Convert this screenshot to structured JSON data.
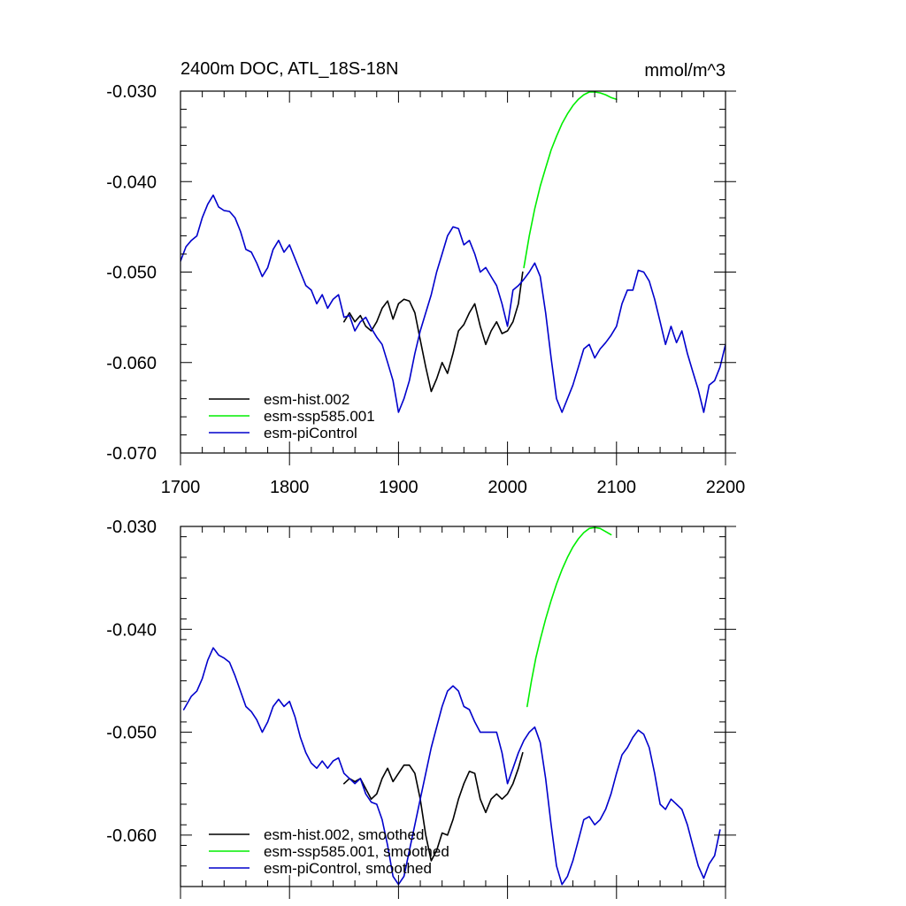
{
  "chart_data": [
    {
      "type": "line",
      "title": "2400m DOC, ATL_18S-18N",
      "units_label": "mmol/m^3",
      "xlim": [
        1700,
        2200
      ],
      "ylim": [
        -0.07,
        -0.03
      ],
      "xticks": [
        1700,
        1800,
        1900,
        2000,
        2100,
        2200
      ],
      "xtick_labels": [
        "1700",
        "1800",
        "1900",
        "2000",
        "2100",
        "2200"
      ],
      "yticks": [
        -0.07,
        -0.06,
        -0.05,
        -0.04,
        -0.03
      ],
      "ytick_labels": [
        "-0.070",
        "-0.060",
        "-0.050",
        "-0.040",
        "-0.030"
      ],
      "legend_position": "bottom-left",
      "series": [
        {
          "name": "esm-hist.002",
          "color": "#000000",
          "x": [
            1850,
            1855,
            1860,
            1865,
            1870,
            1875,
            1880,
            1885,
            1890,
            1895,
            1900,
            1905,
            1910,
            1915,
            1920,
            1925,
            1930,
            1935,
            1940,
            1945,
            1950,
            1955,
            1960,
            1965,
            1970,
            1975,
            1980,
            1985,
            1990,
            1995,
            2000,
            2005,
            2010,
            2014
          ],
          "y": [
            -0.0555,
            -0.0545,
            -0.0555,
            -0.0548,
            -0.056,
            -0.0565,
            -0.0555,
            -0.054,
            -0.0532,
            -0.0552,
            -0.0535,
            -0.053,
            -0.0532,
            -0.0545,
            -0.0575,
            -0.0605,
            -0.0632,
            -0.0618,
            -0.06,
            -0.0612,
            -0.059,
            -0.0565,
            -0.0558,
            -0.0545,
            -0.0535,
            -0.056,
            -0.058,
            -0.0565,
            -0.0555,
            -0.0568,
            -0.0565,
            -0.0555,
            -0.0535,
            -0.05
          ]
        },
        {
          "name": "esm-ssp585.001",
          "color": "#00ee00",
          "x": [
            2015,
            2020,
            2025,
            2030,
            2035,
            2040,
            2045,
            2050,
            2055,
            2060,
            2065,
            2070,
            2075,
            2080,
            2085,
            2090,
            2095,
            2100
          ],
          "y": [
            -0.0495,
            -0.046,
            -0.043,
            -0.0405,
            -0.0385,
            -0.0365,
            -0.035,
            -0.0336,
            -0.0325,
            -0.0316,
            -0.0309,
            -0.0304,
            -0.0301,
            -0.0301,
            -0.0302,
            -0.0304,
            -0.0307,
            -0.0309
          ]
        },
        {
          "name": "esm-piControl",
          "color": "#0000cc",
          "x": [
            1700,
            1705,
            1710,
            1715,
            1720,
            1725,
            1730,
            1735,
            1740,
            1745,
            1750,
            1755,
            1760,
            1765,
            1770,
            1775,
            1780,
            1785,
            1790,
            1795,
            1800,
            1805,
            1810,
            1815,
            1820,
            1825,
            1830,
            1835,
            1840,
            1845,
            1850,
            1855,
            1860,
            1865,
            1870,
            1875,
            1880,
            1885,
            1890,
            1895,
            1900,
            1905,
            1910,
            1915,
            1920,
            1925,
            1930,
            1935,
            1940,
            1945,
            1950,
            1955,
            1960,
            1965,
            1970,
            1975,
            1980,
            1985,
            1990,
            1995,
            2000,
            2005,
            2010,
            2015,
            2020,
            2025,
            2030,
            2035,
            2040,
            2045,
            2050,
            2055,
            2060,
            2065,
            2070,
            2075,
            2080,
            2085,
            2090,
            2095,
            2100,
            2105,
            2110,
            2115,
            2120,
            2125,
            2130,
            2135,
            2140,
            2145,
            2150,
            2155,
            2160,
            2165,
            2170,
            2175,
            2180,
            2185,
            2190,
            2195,
            2200
          ],
          "y": [
            -0.0488,
            -0.0472,
            -0.0465,
            -0.046,
            -0.044,
            -0.0425,
            -0.0415,
            -0.0428,
            -0.0432,
            -0.0433,
            -0.044,
            -0.0455,
            -0.0475,
            -0.0478,
            -0.049,
            -0.0505,
            -0.0495,
            -0.0475,
            -0.0465,
            -0.0478,
            -0.047,
            -0.0485,
            -0.05,
            -0.0515,
            -0.052,
            -0.0535,
            -0.0525,
            -0.054,
            -0.053,
            -0.0525,
            -0.055,
            -0.0548,
            -0.0565,
            -0.0555,
            -0.055,
            -0.0562,
            -0.0572,
            -0.058,
            -0.06,
            -0.062,
            -0.0655,
            -0.064,
            -0.062,
            -0.059,
            -0.0565,
            -0.0545,
            -0.0525,
            -0.05,
            -0.048,
            -0.046,
            -0.045,
            -0.0452,
            -0.047,
            -0.0465,
            -0.048,
            -0.05,
            -0.0495,
            -0.0505,
            -0.0515,
            -0.0535,
            -0.056,
            -0.052,
            -0.0515,
            -0.0508,
            -0.05,
            -0.049,
            -0.0505,
            -0.0545,
            -0.0595,
            -0.064,
            -0.0655,
            -0.064,
            -0.0625,
            -0.0605,
            -0.0585,
            -0.058,
            -0.0595,
            -0.0585,
            -0.0578,
            -0.057,
            -0.056,
            -0.0535,
            -0.052,
            -0.052,
            -0.0498,
            -0.05,
            -0.051,
            -0.053,
            -0.0555,
            -0.058,
            -0.056,
            -0.0578,
            -0.0565,
            -0.059,
            -0.061,
            -0.063,
            -0.0655,
            -0.0625,
            -0.062,
            -0.0605,
            -0.058
          ]
        }
      ]
    },
    {
      "type": "line",
      "title": "",
      "xlim": [
        1700,
        2200
      ],
      "ylim": [
        -0.065,
        -0.03
      ],
      "xticks": [
        1700,
        1800,
        1900,
        2000,
        2100,
        2200
      ],
      "xtick_labels": [],
      "yticks": [
        -0.06,
        -0.05,
        -0.04,
        -0.03
      ],
      "ytick_labels": [
        "-0.060",
        "-0.050",
        "-0.040",
        "-0.030"
      ],
      "legend_position": "bottom-left",
      "series": [
        {
          "name": "esm-hist.002, smoothed",
          "color": "#000000",
          "x": [
            1850,
            1855,
            1860,
            1865,
            1870,
            1875,
            1880,
            1885,
            1890,
            1895,
            1900,
            1905,
            1910,
            1915,
            1920,
            1925,
            1930,
            1935,
            1940,
            1945,
            1950,
            1955,
            1960,
            1965,
            1970,
            1975,
            1980,
            1985,
            1990,
            1995,
            2000,
            2005,
            2010,
            2014
          ],
          "y": [
            -0.055,
            -0.0545,
            -0.0548,
            -0.0545,
            -0.0555,
            -0.0565,
            -0.056,
            -0.0545,
            -0.0535,
            -0.0548,
            -0.054,
            -0.0532,
            -0.0532,
            -0.054,
            -0.0565,
            -0.06,
            -0.0625,
            -0.0615,
            -0.0598,
            -0.06,
            -0.0585,
            -0.0565,
            -0.055,
            -0.0538,
            -0.054,
            -0.0565,
            -0.0578,
            -0.0565,
            -0.056,
            -0.0565,
            -0.056,
            -0.055,
            -0.0535,
            -0.052
          ]
        },
        {
          "name": "esm-ssp585.001, smoothed",
          "color": "#00ee00",
          "x": [
            2018,
            2022,
            2026,
            2030,
            2035,
            2040,
            2045,
            2050,
            2055,
            2060,
            2065,
            2070,
            2075,
            2080,
            2085,
            2090,
            2095
          ],
          "y": [
            -0.0475,
            -0.045,
            -0.0428,
            -0.041,
            -0.039,
            -0.0372,
            -0.0356,
            -0.0342,
            -0.033,
            -0.032,
            -0.0312,
            -0.0306,
            -0.0302,
            -0.0301,
            -0.0302,
            -0.0305,
            -0.0308
          ]
        },
        {
          "name": "esm-piControl, smoothed",
          "color": "#0000cc",
          "x": [
            1703,
            1710,
            1715,
            1720,
            1725,
            1730,
            1735,
            1740,
            1745,
            1750,
            1755,
            1760,
            1765,
            1770,
            1775,
            1780,
            1785,
            1790,
            1795,
            1800,
            1805,
            1810,
            1815,
            1820,
            1825,
            1830,
            1835,
            1840,
            1845,
            1850,
            1855,
            1860,
            1865,
            1870,
            1875,
            1880,
            1885,
            1890,
            1895,
            1900,
            1905,
            1910,
            1915,
            1920,
            1925,
            1930,
            1935,
            1940,
            1945,
            1950,
            1955,
            1960,
            1965,
            1970,
            1975,
            1980,
            1985,
            1990,
            1995,
            2000,
            2005,
            2010,
            2015,
            2020,
            2025,
            2030,
            2035,
            2040,
            2045,
            2050,
            2055,
            2060,
            2065,
            2070,
            2075,
            2080,
            2085,
            2090,
            2095,
            2100,
            2105,
            2110,
            2115,
            2120,
            2125,
            2130,
            2135,
            2140,
            2145,
            2150,
            2155,
            2160,
            2165,
            2170,
            2175,
            2180,
            2185,
            2190,
            2195
          ],
          "y": [
            -0.0478,
            -0.0465,
            -0.046,
            -0.0448,
            -0.043,
            -0.0418,
            -0.0425,
            -0.0428,
            -0.0432,
            -0.0445,
            -0.046,
            -0.0475,
            -0.048,
            -0.0488,
            -0.05,
            -0.049,
            -0.0475,
            -0.0468,
            -0.0475,
            -0.047,
            -0.0485,
            -0.0505,
            -0.052,
            -0.053,
            -0.0535,
            -0.0528,
            -0.0535,
            -0.0528,
            -0.0525,
            -0.054,
            -0.0545,
            -0.055,
            -0.0545,
            -0.056,
            -0.0568,
            -0.057,
            -0.0585,
            -0.061,
            -0.064,
            -0.0648,
            -0.064,
            -0.0615,
            -0.059,
            -0.0565,
            -0.054,
            -0.0515,
            -0.0495,
            -0.0475,
            -0.046,
            -0.0455,
            -0.046,
            -0.0475,
            -0.0478,
            -0.049,
            -0.05,
            -0.05,
            -0.05,
            -0.05,
            -0.052,
            -0.055,
            -0.0535,
            -0.052,
            -0.0508,
            -0.05,
            -0.0495,
            -0.051,
            -0.0545,
            -0.059,
            -0.063,
            -0.0648,
            -0.064,
            -0.0625,
            -0.0605,
            -0.0585,
            -0.0582,
            -0.059,
            -0.0585,
            -0.0575,
            -0.056,
            -0.054,
            -0.0522,
            -0.0515,
            -0.0505,
            -0.0498,
            -0.0502,
            -0.0515,
            -0.054,
            -0.057,
            -0.0575,
            -0.0565,
            -0.057,
            -0.0575,
            -0.059,
            -0.061,
            -0.063,
            -0.0642,
            -0.0628,
            -0.062,
            -0.0595
          ]
        }
      ]
    }
  ]
}
